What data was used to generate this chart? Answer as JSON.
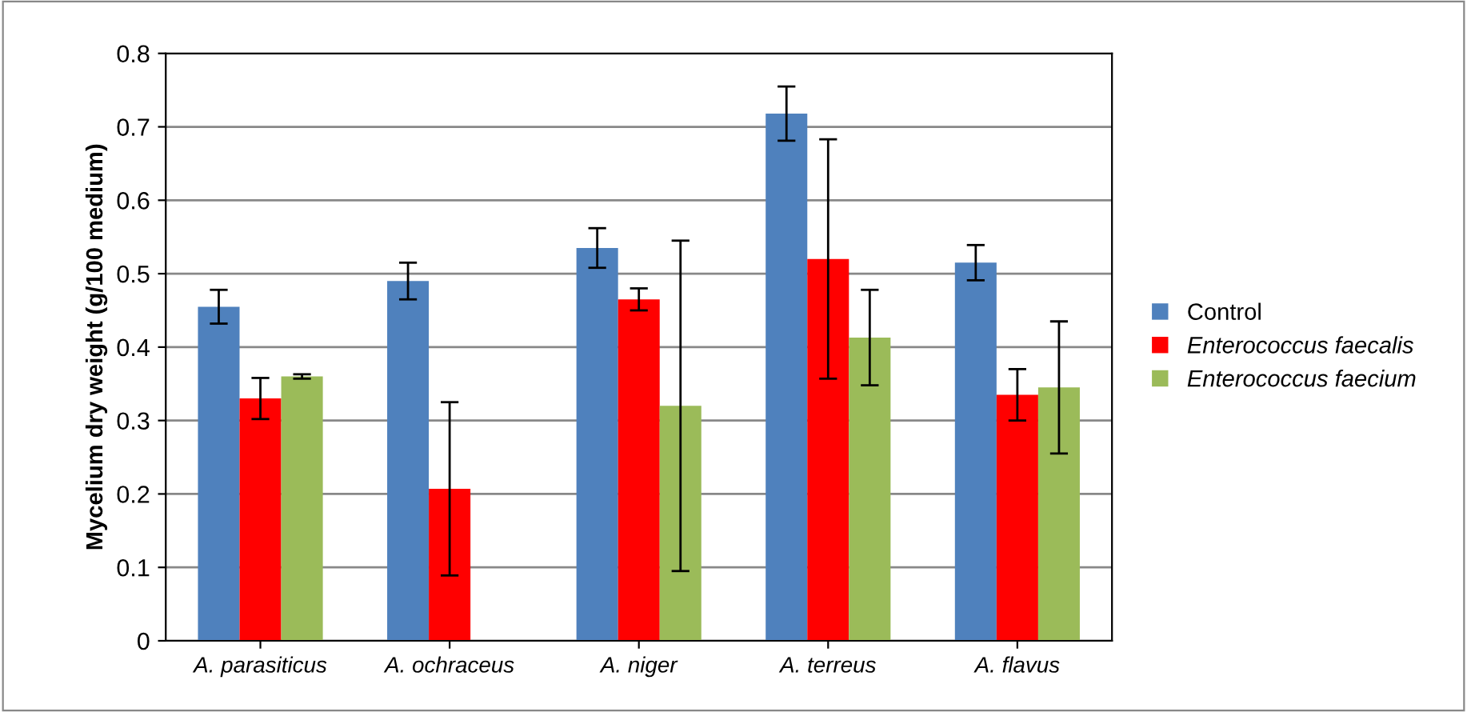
{
  "chart_data": {
    "type": "bar",
    "ylabel": "Mycelium dry weight (g/100 medium)",
    "categories": [
      "A. parasiticus",
      "A. ochraceus",
      "A. niger",
      "A. terreus",
      "A. flavus"
    ],
    "series": [
      {
        "name": "Control",
        "color": "#4f81bd",
        "values": [
          0.455,
          0.49,
          0.535,
          0.718,
          0.515
        ],
        "errors": [
          0.023,
          0.025,
          0.027,
          0.037,
          0.024
        ]
      },
      {
        "name": "Enterococcus faecalis",
        "color": "#ff0000",
        "values": [
          0.33,
          0.207,
          0.465,
          0.52,
          0.335
        ],
        "errors": [
          0.028,
          0.118,
          0.015,
          0.163,
          0.035
        ]
      },
      {
        "name": "Enterococcus faecium",
        "color": "#9bbb59",
        "values": [
          0.36,
          null,
          0.32,
          0.413,
          0.345
        ],
        "errors": [
          0.003,
          null,
          0.225,
          0.065,
          0.09
        ]
      }
    ],
    "ylim": [
      0,
      0.8
    ],
    "yticks": [
      {
        "value": 0,
        "label": "0"
      },
      0.1,
      0.2,
      0.3,
      0.4,
      0.5,
      0.6,
      0.7,
      0.8
    ],
    "grid": "y",
    "legend": "right"
  }
}
